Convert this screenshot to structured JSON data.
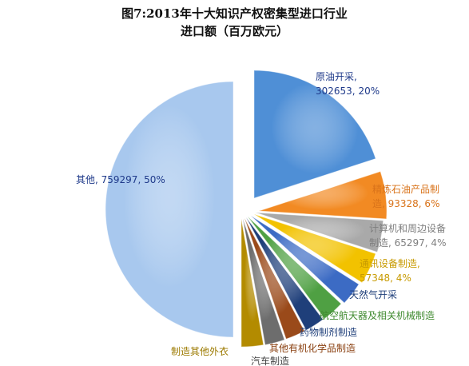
{
  "chart_data": {
    "type": "pie",
    "title_lines": [
      "图7:2013年十大知识产权密集型进口行业",
      "进口额（百万欧元）"
    ],
    "slices": [
      {
        "label_lines": [
          "原油开采,",
          "302653, 20%"
        ],
        "value": 302653,
        "percent": 20,
        "color": "#4f8fd6"
      },
      {
        "label_lines": [
          "精炼石油产品制",
          "造, 93328, 6%"
        ],
        "value": 93328,
        "percent": 6,
        "color": "#f28a23"
      },
      {
        "label_lines": [
          "计算机和周边设备",
          "制造, 65297, 4%"
        ],
        "value": 65297,
        "percent": 4,
        "color": "#a9a9a9"
      },
      {
        "label_lines": [
          "通讯设备制造,",
          "57348, 4%"
        ],
        "value": 57348,
        "percent": 4,
        "color": "#f2c200"
      },
      {
        "label_lines": [
          "天然气开采"
        ],
        "value": null,
        "percent": null,
        "color": "#3c6bc4"
      },
      {
        "label_lines": [
          "航空航天器及相关机械制造"
        ],
        "value": null,
        "percent": null,
        "color": "#4fa043"
      },
      {
        "label_lines": [
          "药物制剂制造"
        ],
        "value": null,
        "percent": null,
        "color": "#1f3f7a"
      },
      {
        "label_lines": [
          "其他有机化学品制造"
        ],
        "value": null,
        "percent": null,
        "color": "#9a4a1a"
      },
      {
        "label_lines": [
          "汽车制造"
        ],
        "value": null,
        "percent": null,
        "color": "#6d6d6d"
      },
      {
        "label_lines": [
          "制造其他外衣"
        ],
        "value": null,
        "percent": null,
        "color": "#b38b00"
      },
      {
        "label_lines": [
          "其他, 759297, 50%"
        ],
        "value": 759297,
        "percent": 50,
        "color": "#a8c8ee"
      }
    ]
  },
  "colors": {
    "label_blue": "#1f3a8a",
    "label_orange": "#d9731a",
    "label_gray": "#7f7f7f",
    "label_gold": "#c79a00",
    "label_green": "#3f8a2f",
    "label_darkblue": "#1f3f7a",
    "label_brown": "#8a4010",
    "label_darkgray": "#444444",
    "label_darkgold": "#9c7a00",
    "label_other": "#1f3a8a"
  }
}
